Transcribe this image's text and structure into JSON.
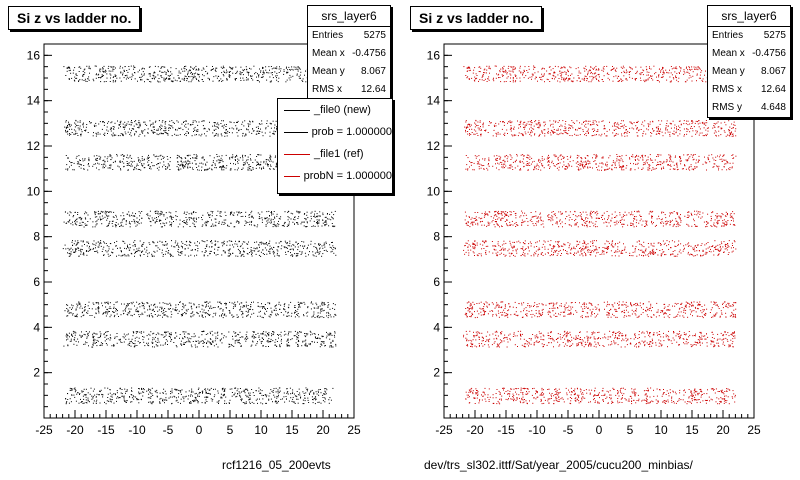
{
  "chart_data": [
    {
      "type": "scatter",
      "title": "Si z vs ladder no.",
      "xlabel": "",
      "ylabel": "",
      "xlim": [
        -25,
        25
      ],
      "ylim": [
        0,
        16.5
      ],
      "x_ticks": [
        "-25",
        "-20",
        "-15",
        "-10",
        "-5",
        "0",
        "5",
        "10",
        "15",
        "20",
        "25"
      ],
      "y_ticks": [
        "2",
        "4",
        "6",
        "8",
        "10",
        "12",
        "14",
        "16"
      ],
      "color": "#000000",
      "bands": [
        {
          "y": 1,
          "x": [
            -22,
            22
          ]
        },
        {
          "y": 3.5,
          "x": [
            -22,
            22
          ]
        },
        {
          "y": 4.8,
          "x": [
            -22,
            22
          ]
        },
        {
          "y": 7.5,
          "x": [
            -22,
            22
          ]
        },
        {
          "y": 8.8,
          "x": [
            -22,
            22
          ]
        },
        {
          "y": 11.3,
          "x": [
            -22,
            22
          ]
        },
        {
          "y": 12.8,
          "x": [
            -22,
            22
          ]
        },
        {
          "y": 15.2,
          "x": [
            -22,
            22
          ]
        }
      ],
      "stats": {
        "name": "srs_layer6",
        "rows": [
          {
            "label": "Entries",
            "value": "5275"
          },
          {
            "label": "Mean x",
            "value": "-0.4756"
          },
          {
            "label": "Mean y",
            "value": "8.067"
          },
          {
            "label": "RMS x",
            "value": "12.64"
          }
        ]
      },
      "legend": [
        {
          "label": "_file0 (new)",
          "color": "#000000"
        },
        {
          "label": "prob = 1.000000",
          "color": "#000000"
        },
        {
          "label": "_file1 (ref)",
          "color": "#cc0000"
        },
        {
          "label": "probN = 1.000000",
          "color": "#cc0000"
        }
      ],
      "caption": "rcf1216_05_200evts"
    },
    {
      "type": "scatter",
      "title": "Si z vs ladder no.",
      "xlabel": "",
      "ylabel": "",
      "xlim": [
        -25,
        25
      ],
      "ylim": [
        0,
        16.5
      ],
      "x_ticks": [
        "-25",
        "-20",
        "-15",
        "-10",
        "-5",
        "0",
        "5",
        "10",
        "15",
        "20",
        "25"
      ],
      "y_ticks": [
        "2",
        "4",
        "6",
        "8",
        "10",
        "12",
        "14",
        "16"
      ],
      "color": "#cc0000",
      "bands": [
        {
          "y": 1,
          "x": [
            -22,
            22
          ]
        },
        {
          "y": 3.5,
          "x": [
            -22,
            22
          ]
        },
        {
          "y": 4.8,
          "x": [
            -22,
            22
          ]
        },
        {
          "y": 7.5,
          "x": [
            -22,
            22
          ]
        },
        {
          "y": 8.8,
          "x": [
            -22,
            22
          ]
        },
        {
          "y": 11.3,
          "x": [
            -22,
            22
          ]
        },
        {
          "y": 12.8,
          "x": [
            -22,
            22
          ]
        },
        {
          "y": 15.2,
          "x": [
            -22,
            22
          ]
        }
      ],
      "stats": {
        "name": "srs_layer6",
        "rows": [
          {
            "label": "Entries",
            "value": "5275"
          },
          {
            "label": "Mean x",
            "value": "-0.4756"
          },
          {
            "label": "Mean y",
            "value": "8.067"
          },
          {
            "label": "RMS x",
            "value": "12.64"
          },
          {
            "label": "RMS y",
            "value": "4.648"
          }
        ]
      },
      "caption": "dev/trs_sl302.ittf/Sat/year_2005/cucu200_minbias/"
    }
  ]
}
